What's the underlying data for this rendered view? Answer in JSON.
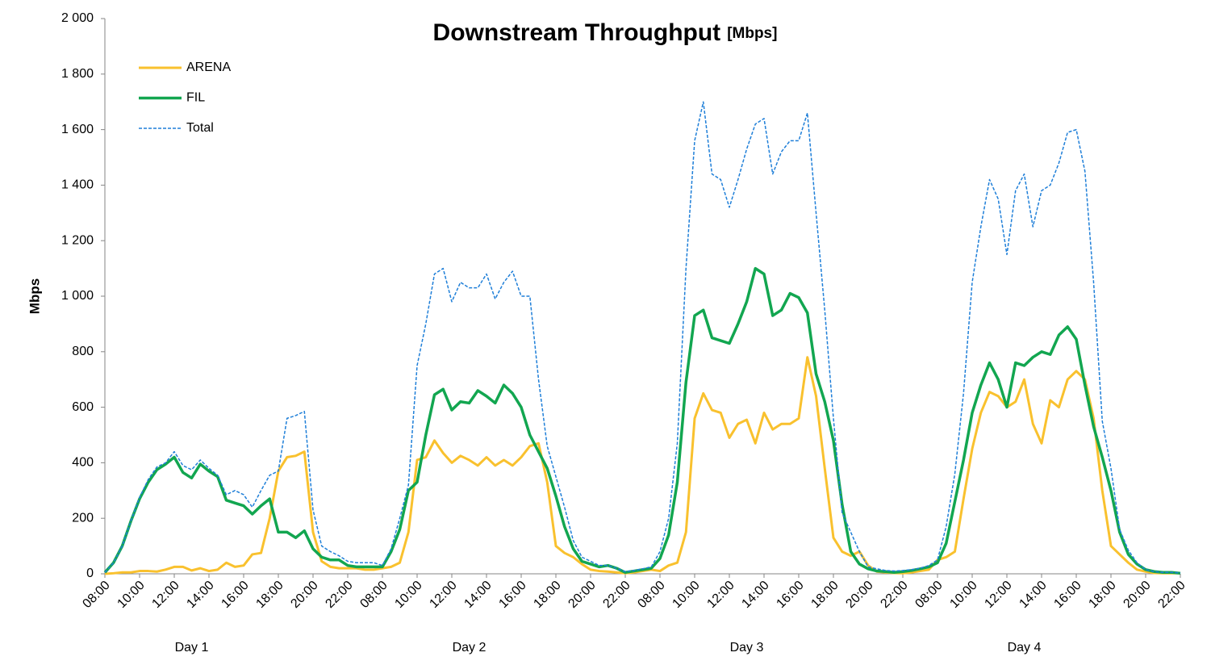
{
  "chart_data": {
    "type": "line",
    "title": "Downstream Throughput",
    "title_unit": "[Mbps]",
    "y_label": "Mbps",
    "days": [
      "Day 1",
      "Day 2",
      "Day 3",
      "Day 4"
    ],
    "categories": [
      "08:00",
      null,
      null,
      null,
      "10:00",
      null,
      null,
      null,
      "12:00",
      null,
      null,
      null,
      "14:00",
      null,
      null,
      null,
      "16:00",
      null,
      null,
      null,
      "18:00",
      null,
      null,
      null,
      "20:00",
      null,
      null,
      null,
      "22:00",
      null,
      null,
      null,
      "08:00",
      null,
      null,
      null,
      "10:00",
      null,
      null,
      null,
      "12:00",
      null,
      null,
      null,
      "14:00",
      null,
      null,
      null,
      "16:00",
      null,
      null,
      null,
      "18:00",
      null,
      null,
      null,
      "20:00",
      null,
      null,
      null,
      "22:00",
      null,
      null,
      null,
      "08:00",
      null,
      null,
      null,
      "10:00",
      null,
      null,
      null,
      "12:00",
      null,
      null,
      null,
      "14:00",
      null,
      null,
      null,
      "16:00",
      null,
      null,
      null,
      "18:00",
      null,
      null,
      null,
      "20:00",
      null,
      null,
      null,
      "22:00",
      null,
      null,
      null,
      "08:00",
      null,
      null,
      null,
      "10:00",
      null,
      null,
      null,
      "12:00",
      null,
      null,
      null,
      "14:00",
      null,
      null,
      null,
      "16:00",
      null,
      null,
      null,
      "18:00",
      null,
      null,
      null,
      "20:00",
      null,
      null,
      null,
      "22:00"
    ],
    "series": [
      {
        "name": "ARENA",
        "color": "#f9c12e",
        "dash": false,
        "width": 3,
        "values": [
          0,
          2,
          5,
          5,
          10,
          10,
          8,
          15,
          25,
          25,
          12,
          20,
          10,
          15,
          40,
          25,
          30,
          70,
          75,
          200,
          370,
          420,
          425,
          440,
          150,
          45,
          25,
          20,
          20,
          20,
          15,
          15,
          20,
          25,
          40,
          150,
          410,
          420,
          480,
          435,
          400,
          425,
          410,
          390,
          420,
          390,
          410,
          390,
          420,
          460,
          470,
          330,
          100,
          75,
          60,
          35,
          15,
          10,
          8,
          5,
          2,
          5,
          10,
          15,
          10,
          30,
          40,
          150,
          560,
          650,
          590,
          580,
          490,
          540,
          555,
          470,
          580,
          520,
          540,
          540,
          560,
          780,
          640,
          380,
          130,
          80,
          65,
          80,
          30,
          8,
          5,
          3,
          2,
          5,
          10,
          15,
          50,
          60,
          80,
          270,
          450,
          580,
          655,
          640,
          600,
          620,
          700,
          540,
          470,
          625,
          600,
          700,
          730,
          700,
          560,
          300,
          100,
          70,
          40,
          15,
          8,
          3,
          2,
          2,
          2
        ]
      },
      {
        "name": "FIL",
        "color": "#12a650",
        "dash": false,
        "width": 3.5,
        "values": [
          5,
          40,
          100,
          190,
          270,
          330,
          375,
          395,
          420,
          365,
          345,
          395,
          370,
          350,
          265,
          255,
          245,
          215,
          245,
          270,
          150,
          150,
          130,
          155,
          90,
          60,
          50,
          50,
          30,
          25,
          25,
          25,
          25,
          80,
          160,
          300,
          330,
          500,
          645,
          665,
          590,
          620,
          615,
          660,
          640,
          615,
          680,
          650,
          600,
          500,
          440,
          380,
          280,
          170,
          90,
          45,
          35,
          25,
          30,
          20,
          5,
          10,
          15,
          20,
          55,
          140,
          330,
          690,
          930,
          950,
          850,
          840,
          830,
          900,
          980,
          1100,
          1080,
          930,
          950,
          1010,
          995,
          940,
          720,
          620,
          480,
          250,
          80,
          35,
          18,
          10,
          8,
          5,
          8,
          12,
          18,
          25,
          40,
          110,
          260,
          410,
          580,
          680,
          760,
          700,
          600,
          760,
          750,
          780,
          800,
          790,
          860,
          890,
          845,
          680,
          530,
          420,
          300,
          150,
          70,
          35,
          15,
          8,
          5,
          5,
          2
        ]
      },
      {
        "name": "Total",
        "color": "#1f7fd8",
        "dash": true,
        "width": 1.5,
        "values": [
          5,
          40,
          100,
          190,
          275,
          340,
          385,
          400,
          440,
          390,
          375,
          410,
          380,
          355,
          285,
          300,
          285,
          240,
          300,
          355,
          370,
          560,
          570,
          585,
          230,
          100,
          80,
          65,
          45,
          40,
          40,
          40,
          30,
          90,
          200,
          320,
          750,
          900,
          1080,
          1100,
          980,
          1050,
          1030,
          1030,
          1080,
          990,
          1050,
          1090,
          1000,
          1000,
          700,
          460,
          350,
          240,
          120,
          60,
          45,
          30,
          30,
          20,
          8,
          12,
          18,
          25,
          80,
          200,
          470,
          1100,
          1560,
          1700,
          1440,
          1420,
          1320,
          1420,
          1530,
          1620,
          1640,
          1440,
          1520,
          1560,
          1560,
          1660,
          1300,
          950,
          560,
          220,
          150,
          80,
          25,
          18,
          12,
          10,
          12,
          15,
          20,
          30,
          50,
          170,
          360,
          650,
          1050,
          1250,
          1420,
          1350,
          1150,
          1380,
          1440,
          1250,
          1380,
          1400,
          1480,
          1590,
          1600,
          1450,
          1050,
          550,
          380,
          160,
          85,
          40,
          15,
          8,
          5,
          5,
          3
        ]
      }
    ],
    "ylim": [
      0,
      2000
    ],
    "yticks": [
      0,
      200,
      400,
      600,
      800,
      {
        "value": 1000,
        "label": "1 000"
      },
      {
        "value": 1200,
        "label": "1 200"
      },
      {
        "value": 1400,
        "label": "1 400"
      },
      {
        "value": 1600,
        "label": "1 600"
      },
      {
        "value": 1800,
        "label": "1 800"
      },
      {
        "value": 2000,
        "label": "2 000"
      }
    ],
    "grid": false,
    "legend": "top-left"
  }
}
